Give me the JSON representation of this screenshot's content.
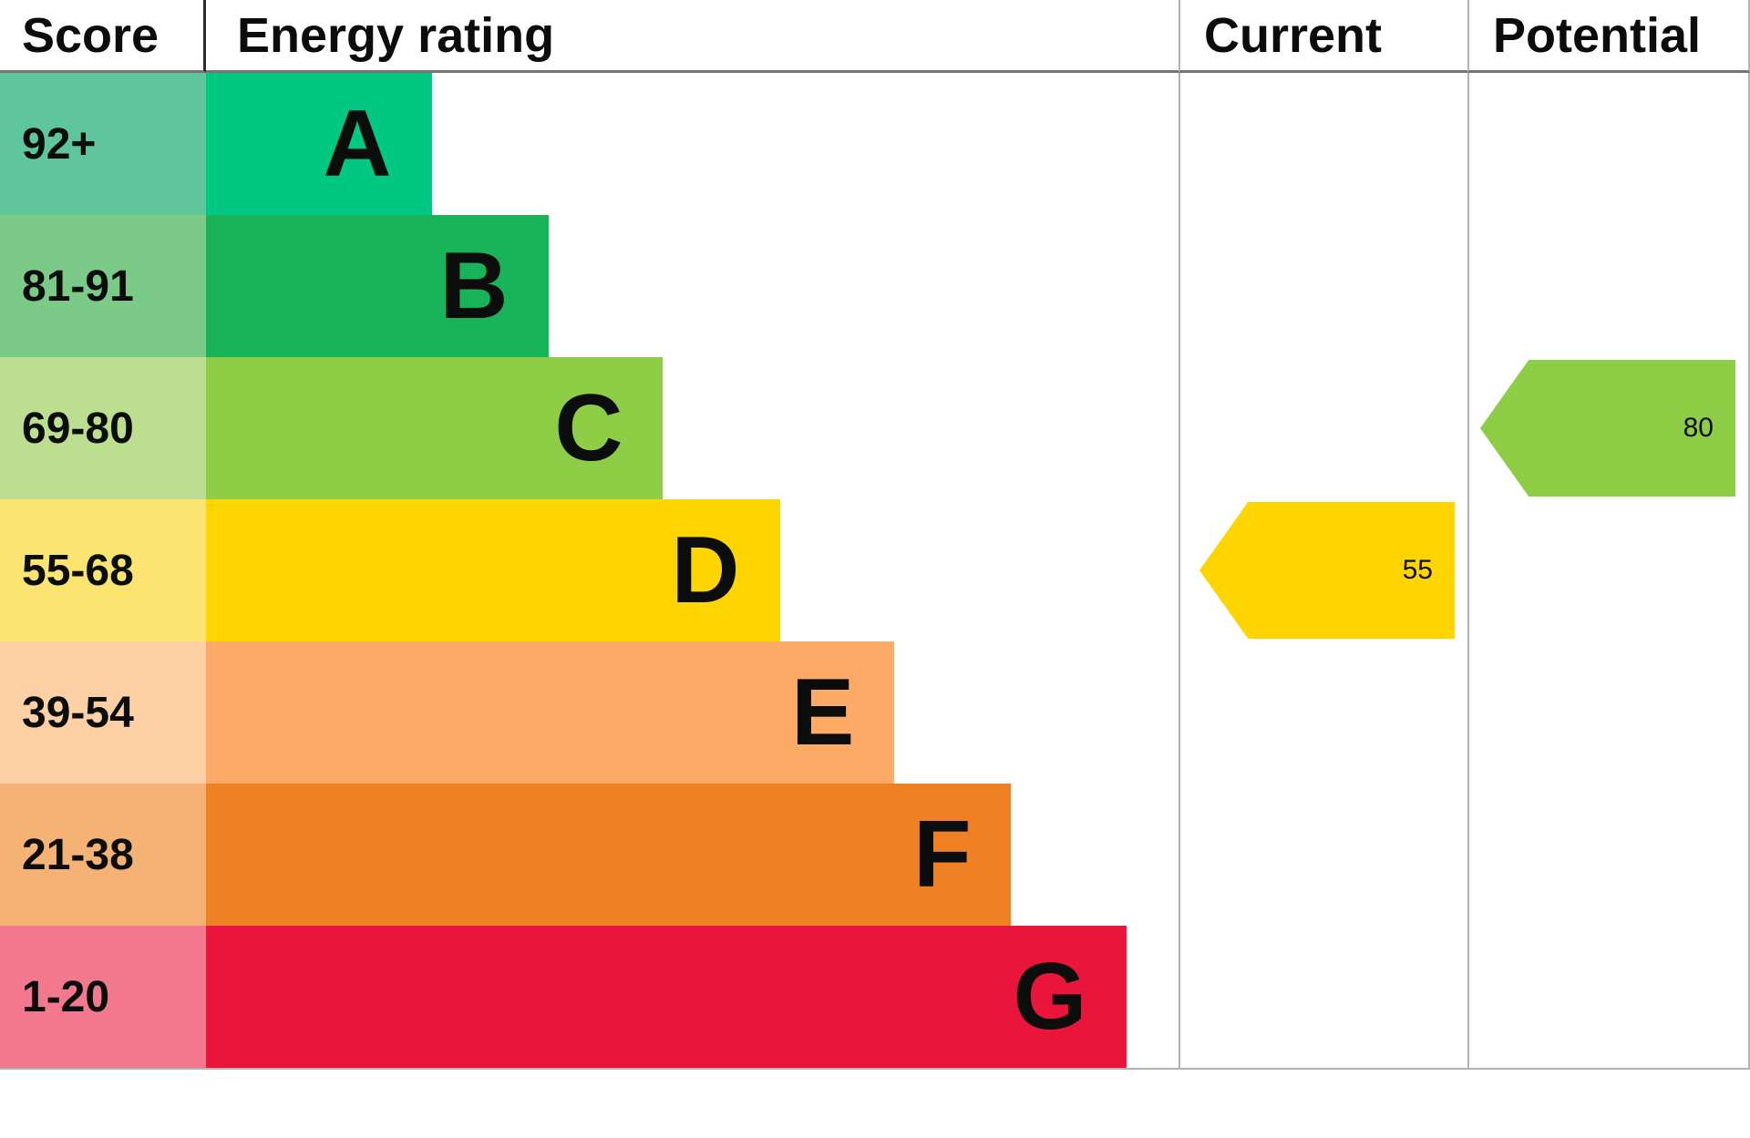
{
  "header": {
    "score": "Score",
    "energy_rating": "Energy rating",
    "current": "Current",
    "potential": "Potential"
  },
  "chart_data": {
    "type": "bar",
    "title": "Energy rating",
    "description": "EPC energy efficiency rating chart",
    "categories": [
      "A",
      "B",
      "C",
      "D",
      "E",
      "F",
      "G"
    ],
    "bands": [
      {
        "score": "92+",
        "letter": "A",
        "color": "#00c781",
        "tint": "#5fc69b",
        "width_pct": 23.2
      },
      {
        "score": "81-91",
        "letter": "B",
        "color": "#19b459",
        "tint": "#7cca87",
        "width_pct": 35.2
      },
      {
        "score": "69-80",
        "letter": "C",
        "color": "#8dce46",
        "tint": "#bcdf8f",
        "width_pct": 47.0
      },
      {
        "score": "55-68",
        "letter": "D",
        "color": "#ffd500",
        "tint": "#fbe46f",
        "width_pct": 59.0
      },
      {
        "score": "39-54",
        "letter": "E",
        "color": "#fcaa65",
        "tint": "#fdd0a5",
        "width_pct": 70.8
      },
      {
        "score": "21-38",
        "letter": "F",
        "color": "#ef8023",
        "tint": "#f4b274",
        "width_pct": 82.8
      },
      {
        "score": "1-20",
        "letter": "G",
        "color": "#e9153b",
        "tint": "#f2788e",
        "width_pct": 94.7
      }
    ],
    "current": {
      "label": "Current",
      "value": "55",
      "band": "D",
      "color": "#ffd500"
    },
    "potential": {
      "label": "Potential",
      "value": "80",
      "band": "C",
      "color": "#8dce46"
    }
  }
}
